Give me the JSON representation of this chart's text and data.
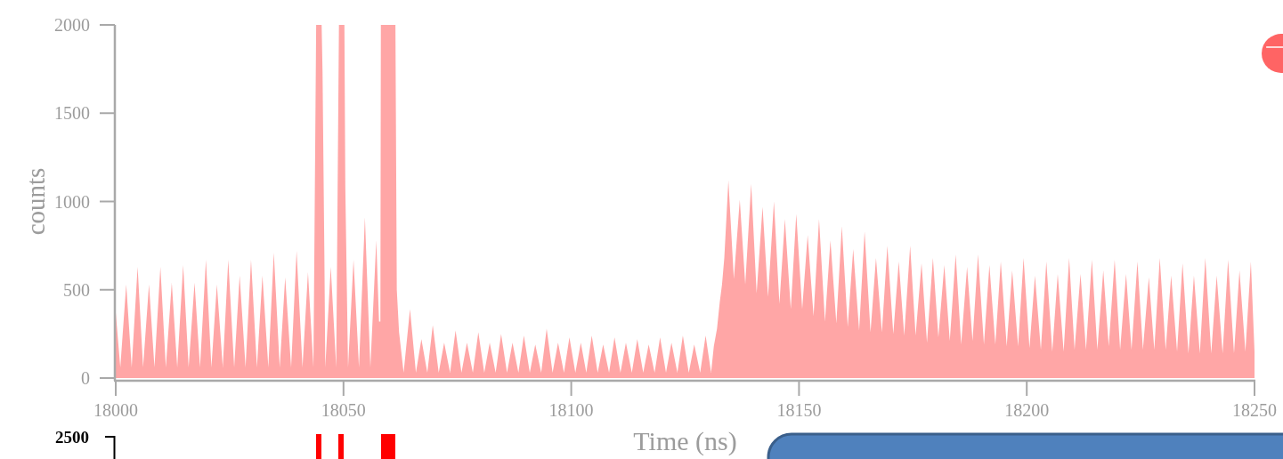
{
  "chart_data": [
    {
      "type": "area",
      "xlabel": "Time (ns)",
      "ylabel": "counts",
      "color": "#ffa6a6",
      "xlim": [
        18000,
        18250
      ],
      "xticks": [
        18000,
        18050,
        18100,
        18150,
        18200,
        18250
      ],
      "ylim": [
        0,
        2000
      ],
      "yticks": [
        0,
        500,
        1000,
        1500,
        2000
      ],
      "x": [
        18000.0,
        18001.0,
        18002.3,
        18003.5,
        18004.8,
        18006.0,
        18007.3,
        18008.5,
        18009.8,
        18011.0,
        18012.3,
        18013.5,
        18014.8,
        18016.0,
        18017.3,
        18018.5,
        18019.8,
        18021.0,
        18022.2,
        18023.5,
        18024.7,
        18026.0,
        18027.2,
        18028.5,
        18029.7,
        18031.0,
        18032.2,
        18033.5,
        18034.7,
        18036.0,
        18037.2,
        18038.5,
        18039.7,
        18041.0,
        18042.2,
        18043.4,
        18044.0,
        18045.2,
        18045.4,
        18045.8,
        18046.0,
        18047.2,
        18048.4,
        18049.0,
        18050.2,
        18050.4,
        18051.0,
        18052.2,
        18053.4,
        18054.7,
        18055.9,
        18057.2,
        18057.8,
        18058.1,
        18058.2,
        18061.4,
        18061.5,
        18061.7,
        18062.2,
        18063.2,
        18064.6,
        18065.9,
        18067.1,
        18068.4,
        18069.6,
        18070.9,
        18072.1,
        18073.4,
        18074.6,
        18075.9,
        18077.1,
        18078.4,
        18079.6,
        18080.9,
        18082.1,
        18083.4,
        18084.6,
        18085.9,
        18087.1,
        18088.4,
        18089.6,
        18090.9,
        18092.1,
        18093.4,
        18094.6,
        18095.9,
        18097.1,
        18098.4,
        18099.6,
        18100.9,
        18102.1,
        18103.3,
        18104.5,
        18105.8,
        18107.0,
        18108.3,
        18109.5,
        18110.8,
        18112.0,
        18113.3,
        18114.5,
        18115.8,
        18117.0,
        18118.3,
        18119.5,
        18120.8,
        18122.0,
        18123.3,
        18124.5,
        18125.8,
        18127.0,
        18128.3,
        18129.5,
        18130.7,
        18131.3,
        18132.0,
        18132.6,
        18133.1,
        18133.6,
        18134.5,
        18135.7,
        18137.0,
        18138.2,
        18139.5,
        18140.7,
        18142.0,
        18143.2,
        18144.5,
        18145.7,
        18146.9,
        18148.2,
        18149.4,
        18150.7,
        18151.9,
        18153.2,
        18154.4,
        18155.7,
        18156.9,
        18158.2,
        18159.4,
        18160.7,
        18161.9,
        18163.2,
        18164.4,
        18165.7,
        18166.9,
        18168.2,
        18169.4,
        18170.7,
        18171.9,
        18173.1,
        18174.4,
        18175.6,
        18176.9,
        18178.1,
        18179.4,
        18180.6,
        18181.9,
        18183.1,
        18184.4,
        18185.6,
        18186.9,
        18188.1,
        18189.3,
        18190.6,
        18191.8,
        18193.1,
        18194.3,
        18195.6,
        18196.8,
        18198.1,
        18199.3,
        18200.6,
        18201.8,
        18203.1,
        18204.3,
        18205.6,
        18206.8,
        18208.1,
        18209.3,
        18210.5,
        18211.8,
        18213.0,
        18214.3,
        18215.5,
        18216.8,
        18218.0,
        18219.3,
        18220.5,
        18221.8,
        18223.0,
        18224.3,
        18225.5,
        18226.8,
        18228.0,
        18229.2,
        18230.5,
        18231.7,
        18233.0,
        18234.2,
        18235.5,
        18236.7,
        18238.0,
        18239.2,
        18240.5,
        18241.7,
        18243.0,
        18244.2,
        18245.5,
        18246.7,
        18248.0,
        18249.2,
        18250.0
      ],
      "values": [
        370,
        60,
        530,
        60,
        630,
        60,
        530,
        60,
        630,
        60,
        540,
        60,
        640,
        60,
        540,
        60,
        670,
        60,
        530,
        60,
        670,
        60,
        580,
        60,
        670,
        60,
        580,
        60,
        710,
        60,
        570,
        60,
        720,
        60,
        600,
        60,
        2000,
        2000,
        1730,
        700,
        60,
        630,
        60,
        2000,
        2000,
        1080,
        60,
        670,
        60,
        910,
        60,
        780,
        320,
        320,
        2000,
        2000,
        1510,
        500,
        260,
        30,
        390,
        30,
        220,
        30,
        300,
        30,
        200,
        30,
        270,
        30,
        200,
        30,
        260,
        30,
        200,
        30,
        250,
        30,
        200,
        30,
        240,
        30,
        190,
        30,
        280,
        30,
        200,
        30,
        230,
        30,
        200,
        30,
        240,
        30,
        190,
        30,
        230,
        30,
        200,
        30,
        220,
        30,
        190,
        30,
        230,
        30,
        200,
        30,
        240,
        30,
        190,
        30,
        240,
        30,
        180,
        280,
        430,
        530,
        680,
        1120,
        560,
        1010,
        530,
        1100,
        480,
        970,
        460,
        1000,
        420,
        900,
        390,
        930,
        390,
        810,
        350,
        900,
        320,
        780,
        310,
        860,
        290,
        730,
        270,
        830,
        260,
        680,
        260,
        750,
        250,
        660,
        240,
        750,
        240,
        650,
        200,
        680,
        230,
        640,
        210,
        700,
        190,
        630,
        210,
        700,
        190,
        640,
        190,
        660,
        180,
        610,
        180,
        680,
        170,
        580,
        160,
        660,
        150,
        590,
        150,
        680,
        160,
        590,
        160,
        670,
        160,
        610,
        180,
        670,
        160,
        590,
        160,
        660,
        160,
        570,
        160,
        680,
        160,
        580,
        150,
        650,
        140,
        580,
        140,
        680,
        140,
        580,
        140,
        670,
        140,
        610,
        150,
        660,
        150
      ]
    },
    {
      "type": "other",
      "annotations": [
        "2500"
      ]
    }
  ]
}
